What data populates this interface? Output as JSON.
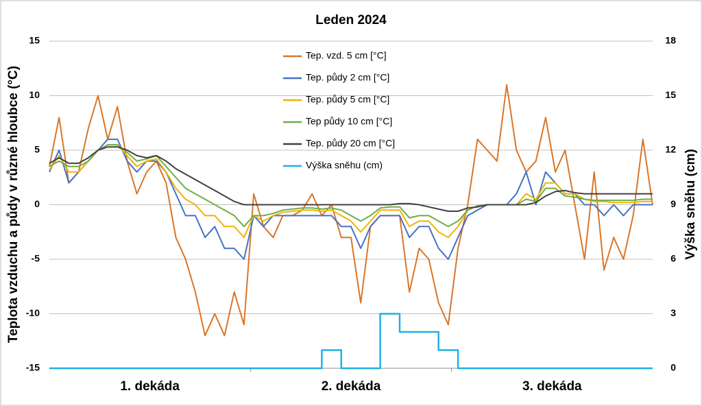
{
  "chart_data": {
    "type": "line",
    "title": "Leden 2024",
    "y_label": "Teplota vzduchu a půdy v různé hloubce (°C)",
    "y2_label": "Výška sněhu (cm)",
    "x_labels": [
      "1. dekáda",
      "2. dekáda",
      "3. dekáda"
    ],
    "ylim": [
      -15,
      15
    ],
    "yticks": [
      -15,
      -10,
      -5,
      0,
      5,
      10,
      15
    ],
    "y2lim": [
      0,
      18
    ],
    "y2ticks": [
      0,
      3,
      6,
      9,
      12,
      15,
      18
    ],
    "grid": true,
    "legend": "top",
    "series": [
      {
        "name": "Tep. vzd. 5 cm [°C]",
        "color": "#d97528",
        "values": [
          3.5,
          8,
          2,
          3,
          7,
          10,
          6,
          9,
          4,
          1,
          3,
          4,
          2,
          -3,
          -5,
          -8,
          -12,
          -10,
          -12,
          -8,
          -11,
          1,
          -2,
          -3,
          -1,
          -1,
          -0.5,
          1,
          -1,
          0,
          -3,
          -3,
          -9,
          -2,
          -1,
          -1,
          -1,
          -8,
          -4,
          -5,
          -9,
          -11,
          -4,
          0,
          6,
          5,
          4,
          11,
          5,
          3,
          4,
          8,
          3,
          5,
          0,
          -5,
          3,
          -6,
          -3,
          -5,
          -1,
          6,
          0
        ]
      },
      {
        "name": "Tep. půdy 2 cm [°C]",
        "color": "#4472c4",
        "values": [
          3,
          5,
          2,
          3,
          4,
          5,
          6,
          6,
          4,
          3,
          4,
          4,
          3,
          1,
          -1,
          -1,
          -3,
          -2,
          -4,
          -4,
          -5,
          -1,
          -2,
          -1,
          -1,
          -1,
          -1,
          -1,
          -1,
          -1,
          -2,
          -2,
          -4,
          -2,
          -1,
          -1,
          -1,
          -3,
          -2,
          -2,
          -4,
          -5,
          -3,
          -1,
          -0.5,
          0,
          0,
          0,
          1,
          3,
          0,
          3,
          2,
          1,
          1,
          0,
          0,
          -1,
          0,
          -1,
          0,
          0,
          0
        ]
      },
      {
        "name": "Tep. půdy 5 cm [°C]",
        "color": "#f0b400",
        "values": [
          3.2,
          4.5,
          3,
          3,
          4,
          5,
          5.5,
          5.5,
          4.5,
          3.5,
          4,
          4.2,
          3,
          1.5,
          0.5,
          0,
          -1,
          -1,
          -2,
          -2,
          -3,
          -1,
          -1.5,
          -1,
          -0.7,
          -0.6,
          -0.5,
          -0.5,
          -0.6,
          -0.5,
          -1,
          -1.5,
          -2.5,
          -1.5,
          -0.5,
          -0.5,
          -0.5,
          -2,
          -1.5,
          -1.5,
          -2.5,
          -3,
          -2,
          -0.5,
          -0.1,
          0,
          0,
          0,
          0,
          1,
          0.5,
          2,
          2,
          1,
          1,
          0.5,
          0.3,
          0.3,
          0.2,
          0.2,
          0.2,
          0.3,
          0.3
        ]
      },
      {
        "name": "Tep půdy 10 cm [°C]",
        "color": "#70ad47",
        "values": [
          3.5,
          4,
          3.5,
          3.5,
          4,
          5,
          5.5,
          5.5,
          4.8,
          4,
          4.2,
          4.5,
          3.5,
          2.5,
          1.5,
          1,
          0.5,
          0,
          -0.5,
          -1,
          -2,
          -1,
          -1,
          -0.8,
          -0.5,
          -0.4,
          -0.3,
          -0.3,
          -0.4,
          -0.3,
          -0.5,
          -1,
          -1.5,
          -1,
          -0.3,
          -0.2,
          -0.2,
          -1.2,
          -1,
          -1,
          -1.5,
          -2,
          -1.5,
          -0.5,
          -0.1,
          0,
          0,
          0,
          0,
          0.5,
          0.3,
          1.5,
          1.5,
          0.8,
          0.7,
          0.5,
          0.4,
          0.4,
          0.4,
          0.4,
          0.4,
          0.5,
          0.5
        ]
      },
      {
        "name": "Tep. půdy 20 cm [°C]",
        "color": "#404040",
        "values": [
          3.8,
          4.3,
          3.8,
          3.8,
          4.3,
          5,
          5.3,
          5.3,
          5,
          4.5,
          4.3,
          4.5,
          4,
          3.3,
          2.8,
          2.3,
          1.8,
          1.3,
          0.8,
          0.3,
          0,
          0,
          0,
          0,
          0,
          0,
          0,
          0,
          0,
          0,
          0,
          0,
          0,
          0,
          0,
          0,
          0.1,
          0.1,
          0,
          -0.2,
          -0.4,
          -0.6,
          -0.6,
          -0.3,
          -0.2,
          0,
          0,
          0,
          0,
          0,
          0.2,
          0.8,
          1.2,
          1.3,
          1.1,
          1,
          1,
          1,
          1,
          1,
          1,
          1,
          1
        ]
      },
      {
        "name": "Výška sněhu (cm)",
        "color": "#1fb0e6",
        "axis": "y2",
        "step": true,
        "values": [
          0,
          0,
          0,
          0,
          0,
          0,
          0,
          0,
          0,
          0,
          0,
          0,
          0,
          0,
          0,
          0,
          0,
          0,
          0,
          0,
          0,
          0,
          0,
          0,
          0,
          0,
          0,
          0,
          1,
          1,
          0,
          0,
          0,
          0,
          3,
          3,
          2,
          2,
          2,
          2,
          1,
          1,
          0,
          0,
          0,
          0,
          0,
          0,
          0,
          0,
          0,
          0,
          0,
          0,
          0,
          0,
          0,
          0,
          0,
          0,
          0,
          0,
          0
        ]
      }
    ]
  }
}
